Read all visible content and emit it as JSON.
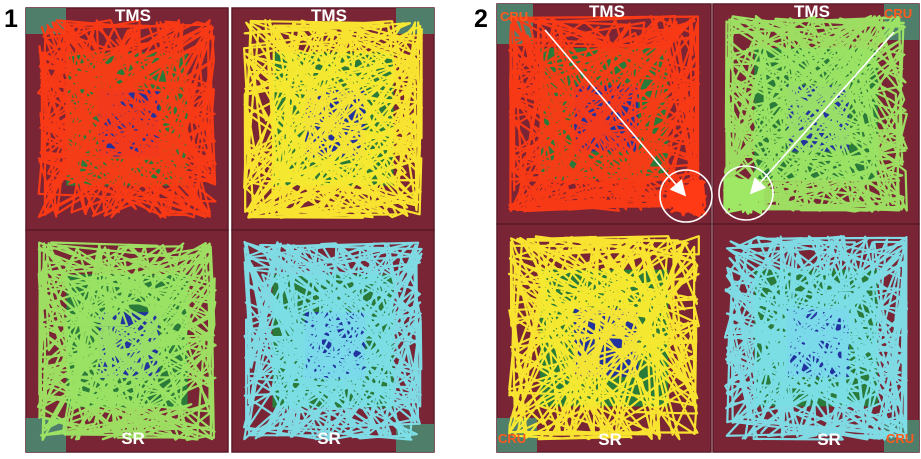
{
  "figure": {
    "panels": [
      {
        "number": "1",
        "quadrants": [
          {
            "position": "top-left",
            "label": "TMS",
            "label_side": "top",
            "trace_color": "#ff3a14",
            "trace_name": "red-trace"
          },
          {
            "position": "top-right",
            "label": "TMS",
            "label_side": "top",
            "trace_color": "#ffee30",
            "trace_name": "yellow-trace"
          },
          {
            "position": "bottom-left",
            "label": "SR",
            "label_side": "bottom",
            "trace_color": "#9fe865",
            "trace_name": "green-trace"
          },
          {
            "position": "bottom-right",
            "label": "SR",
            "label_side": "bottom",
            "trace_color": "#7fe4ee",
            "trace_name": "cyan-trace"
          }
        ],
        "corner_labels": []
      },
      {
        "number": "2",
        "quadrants": [
          {
            "position": "top-left",
            "label": "TMS",
            "label_side": "top",
            "trace_color": "#ff3a14",
            "trace_name": "red-trace"
          },
          {
            "position": "top-right",
            "label": "TMS",
            "label_side": "top",
            "trace_color": "#9fe865",
            "trace_name": "green-trace"
          },
          {
            "position": "bottom-left",
            "label": "SR",
            "label_side": "bottom",
            "trace_color": "#ffee30",
            "trace_name": "yellow-trace"
          },
          {
            "position": "bottom-right",
            "label": "SR",
            "label_side": "bottom",
            "trace_color": "#7fe4ee",
            "trace_name": "cyan-trace"
          }
        ],
        "corner_labels": [
          {
            "corner": "top-left",
            "text": "CRU"
          },
          {
            "corner": "top-right",
            "text": "CRU"
          },
          {
            "corner": "bottom-left",
            "text": "CRU"
          },
          {
            "corner": "bottom-right",
            "text": "CRU"
          }
        ]
      }
    ],
    "colors": {
      "arena_border": "#7a2535",
      "outer_zone": "#7a2535",
      "middle_zone": "#2a7a3a",
      "center_zone": "#2233a0",
      "corner_patch": "#4a8a70",
      "cru_text": "#ff5a1e",
      "arrow": "#ffffff"
    }
  }
}
